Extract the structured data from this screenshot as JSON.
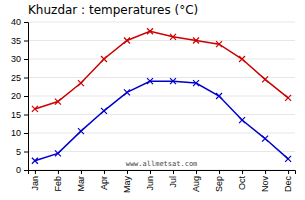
{
  "chart_data": {
    "type": "line",
    "title": "Khuzdar : temperatures (°C)",
    "categories": [
      "Jan",
      "Feb",
      "Mar",
      "Apr",
      "May",
      "Jun",
      "Jul",
      "Aug",
      "Sep",
      "Oct",
      "Nov",
      "Dec"
    ],
    "series": [
      {
        "color": "#cc0000",
        "values": [
          16.5,
          18.5,
          23.5,
          30.0,
          35.0,
          37.5,
          36.0,
          35.0,
          34.0,
          30.0,
          24.5,
          19.5
        ]
      },
      {
        "color": "#0000cc",
        "values": [
          2.5,
          4.5,
          10.5,
          16.0,
          21.0,
          24.0,
          24.0,
          23.5,
          20.0,
          13.5,
          8.5,
          3.0
        ]
      }
    ],
    "ylim": [
      0,
      40
    ],
    "yticks": [
      0,
      5,
      10,
      15,
      20,
      25,
      30,
      35,
      40
    ],
    "grid": true,
    "marker": "x",
    "annotations": [
      "www.allmetsat.com"
    ]
  }
}
